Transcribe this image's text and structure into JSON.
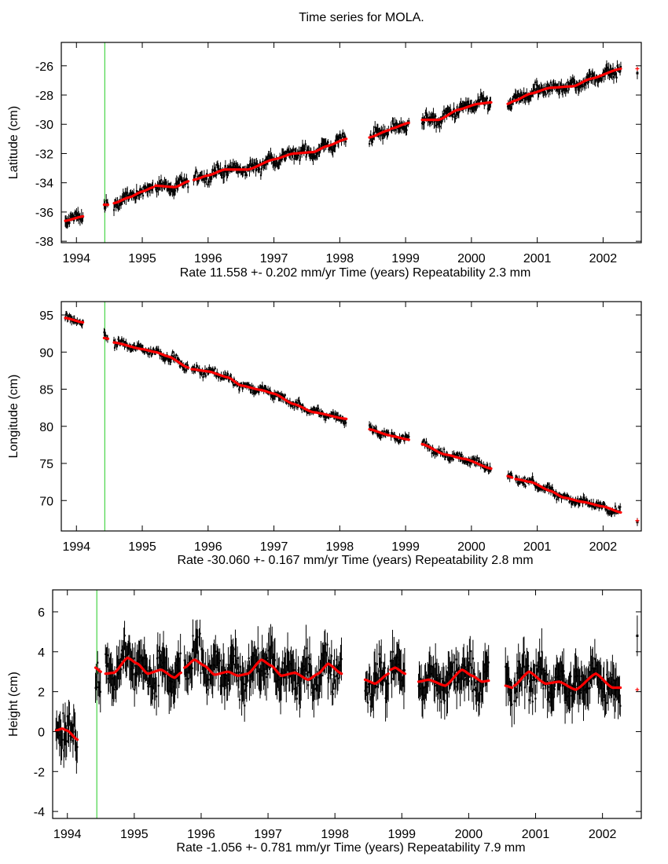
{
  "title": "Time series for MOLA.",
  "colors": {
    "data": "#000000",
    "fit": "#ff0000",
    "marker_line": "#22cc22",
    "axes": "#000000"
  },
  "chart_data": [
    {
      "type": "scatter",
      "ylabel": "Latitude (cm)",
      "xlabel": {
        "rate": "Rate 11.558 +- 0.202 mm/yr",
        "axis": "Time (years)",
        "repeatability": "Repeatability 2.3 mm"
      },
      "xlim": [
        1993.77,
        2002.58
      ],
      "ylim": [
        -38.1,
        -24.4
      ],
      "xticks": [
        1994,
        1995,
        1996,
        1997,
        1998,
        1999,
        2000,
        2001,
        2002
      ],
      "yticks": [
        -38,
        -36,
        -34,
        -32,
        -30,
        -28,
        -26
      ],
      "marker_line_x": 1994.43,
      "grid": false,
      "fit_segments": [
        [
          [
            1993.83,
            -36.6
          ],
          [
            1994.1,
            -36.3
          ]
        ],
        [
          [
            1994.42,
            -35.5
          ],
          [
            1994.48,
            -35.5
          ]
        ],
        [
          [
            1994.57,
            -35.4
          ],
          [
            1994.8,
            -35.0
          ],
          [
            1995.0,
            -34.6
          ],
          [
            1995.17,
            -34.3
          ]
        ],
        [
          [
            1995.2,
            -34.2
          ],
          [
            1995.5,
            -34.3
          ],
          [
            1995.7,
            -33.9
          ]
        ],
        [
          [
            1995.78,
            -33.8
          ],
          [
            1996.0,
            -33.5
          ],
          [
            1996.25,
            -33.1
          ],
          [
            1996.6,
            -33.1
          ],
          [
            1997.0,
            -32.4
          ],
          [
            1997.3,
            -32.0
          ],
          [
            1997.6,
            -31.9
          ],
          [
            1997.8,
            -31.5
          ],
          [
            1998.1,
            -31.0
          ]
        ],
        [
          [
            1998.45,
            -30.9
          ],
          [
            1998.75,
            -30.4
          ]
        ],
        [
          [
            1998.78,
            -30.3
          ],
          [
            1999.05,
            -29.9
          ]
        ],
        [
          [
            1999.25,
            -29.7
          ],
          [
            1999.5,
            -29.7
          ],
          [
            1999.8,
            -29.0
          ],
          [
            2000.1,
            -28.6
          ],
          [
            2000.3,
            -28.5
          ]
        ],
        [
          [
            2000.55,
            -28.6
          ],
          [
            2000.65,
            -28.4
          ],
          [
            2000.9,
            -27.9
          ],
          [
            2001.2,
            -27.5
          ],
          [
            2001.55,
            -27.4
          ],
          [
            2001.8,
            -26.9
          ],
          [
            2002.27,
            -26.2
          ]
        ]
      ],
      "isolated_point": {
        "x": 2002.52,
        "y": -26.5,
        "fit": -26.2
      }
    },
    {
      "type": "scatter",
      "ylabel": "Longitude (cm)",
      "xlabel": {
        "rate": "Rate -30.060 +- 0.167 mm/yr",
        "axis": "Time (years)",
        "repeatability": "Repeatability 2.8 mm"
      },
      "xlim": [
        1993.77,
        2002.58
      ],
      "ylim": [
        65.9,
        96.8
      ],
      "xticks": [
        1994,
        1995,
        1996,
        1997,
        1998,
        1999,
        2000,
        2001,
        2002
      ],
      "yticks": [
        70,
        75,
        80,
        85,
        90,
        95
      ],
      "marker_line_x": 1994.43,
      "grid": false,
      "fit_segments": [
        [
          [
            1993.83,
            94.6
          ],
          [
            1994.1,
            94.0
          ]
        ],
        [
          [
            1994.42,
            91.9
          ],
          [
            1994.48,
            91.8
          ]
        ],
        [
          [
            1994.57,
            91.3
          ],
          [
            1995.0,
            90.4
          ],
          [
            1995.2,
            90.0
          ],
          [
            1995.4,
            89.4
          ],
          [
            1995.7,
            87.9
          ]
        ],
        [
          [
            1995.75,
            87.7
          ],
          [
            1996.0,
            87.4
          ],
          [
            1996.3,
            86.6
          ],
          [
            1996.5,
            85.5
          ],
          [
            1996.8,
            84.9
          ],
          [
            1997.0,
            84.4
          ],
          [
            1997.3,
            83.0
          ],
          [
            1997.6,
            81.9
          ],
          [
            1998.1,
            81.0
          ]
        ],
        [
          [
            1998.45,
            79.6
          ],
          [
            1998.75,
            78.8
          ]
        ],
        [
          [
            1998.78,
            78.7
          ],
          [
            1999.05,
            78.2
          ]
        ],
        [
          [
            1999.25,
            77.6
          ],
          [
            1999.6,
            76.2
          ],
          [
            1999.9,
            75.6
          ],
          [
            2000.3,
            74.3
          ]
        ],
        [
          [
            2000.55,
            73.3
          ],
          [
            2000.62,
            73.1
          ]
        ],
        [
          [
            2000.67,
            72.9
          ],
          [
            2000.9,
            72.5
          ],
          [
            2001.2,
            71.3
          ],
          [
            2001.4,
            70.4
          ],
          [
            2001.7,
            69.8
          ],
          [
            2002.0,
            69.2
          ],
          [
            2002.27,
            68.4
          ]
        ]
      ],
      "isolated_point": {
        "x": 2002.52,
        "y": 67.1,
        "fit": 67.3
      }
    },
    {
      "type": "scatter",
      "ylabel": "Height (cm)",
      "xlabel": {
        "rate": "Rate -1.056 +- 0.781 mm/yr",
        "axis": "Time (years)",
        "repeatability": "Repeatability 7.9 mm"
      },
      "xlim": [
        1993.78,
        2002.58
      ],
      "ylim": [
        -4.35,
        7.1
      ],
      "xticks": [
        1994,
        1995,
        1996,
        1997,
        1998,
        1999,
        2000,
        2001,
        2002
      ],
      "yticks": [
        -4,
        -2,
        0,
        2,
        4,
        6
      ],
      "marker_line_x": 1994.44,
      "grid": false,
      "fit_segments": [
        [
          [
            1993.83,
            0.05
          ],
          [
            1993.92,
            0.15
          ],
          [
            1994.0,
            0.05
          ],
          [
            1994.15,
            -0.4
          ]
        ],
        [
          [
            1994.42,
            3.2
          ],
          [
            1994.5,
            3.0
          ]
        ],
        [
          [
            1994.57,
            2.9
          ],
          [
            1994.7,
            2.95
          ],
          [
            1994.9,
            3.7
          ],
          [
            1995.05,
            3.4
          ],
          [
            1995.2,
            2.9
          ],
          [
            1995.4,
            3.1
          ],
          [
            1995.6,
            2.7
          ],
          [
            1995.7,
            2.95
          ]
        ],
        [
          [
            1995.75,
            3.2
          ],
          [
            1995.9,
            3.6
          ],
          [
            1996.05,
            3.3
          ],
          [
            1996.2,
            2.85
          ],
          [
            1996.4,
            3.0
          ],
          [
            1996.55,
            2.8
          ],
          [
            1996.7,
            2.9
          ],
          [
            1996.9,
            3.6
          ],
          [
            1997.05,
            3.3
          ],
          [
            1997.2,
            2.8
          ],
          [
            1997.4,
            2.95
          ],
          [
            1997.6,
            2.6
          ],
          [
            1997.75,
            2.9
          ],
          [
            1997.9,
            3.4
          ],
          [
            1998.1,
            2.9
          ]
        ],
        [
          [
            1998.45,
            2.6
          ],
          [
            1998.6,
            2.4
          ],
          [
            1998.8,
            2.9
          ]
        ],
        [
          [
            1998.83,
            3.1
          ],
          [
            1998.9,
            3.2
          ],
          [
            1999.05,
            2.9
          ]
        ],
        [
          [
            1999.25,
            2.5
          ],
          [
            1999.4,
            2.6
          ],
          [
            1999.65,
            2.3
          ],
          [
            1999.9,
            3.1
          ],
          [
            2000.05,
            2.8
          ],
          [
            2000.2,
            2.5
          ],
          [
            2000.3,
            2.55
          ]
        ],
        [
          [
            2000.55,
            2.3
          ],
          [
            2000.65,
            2.2
          ]
        ],
        [
          [
            2000.68,
            2.3
          ],
          [
            2000.9,
            3.0
          ],
          [
            2001.15,
            2.4
          ],
          [
            2001.35,
            2.5
          ],
          [
            2001.6,
            2.1
          ],
          [
            2001.9,
            2.9
          ],
          [
            2002.15,
            2.2
          ],
          [
            2002.27,
            2.2
          ]
        ]
      ],
      "isolated_point": {
        "x": 2002.52,
        "y": 4.8,
        "fit": 2.1
      }
    }
  ]
}
